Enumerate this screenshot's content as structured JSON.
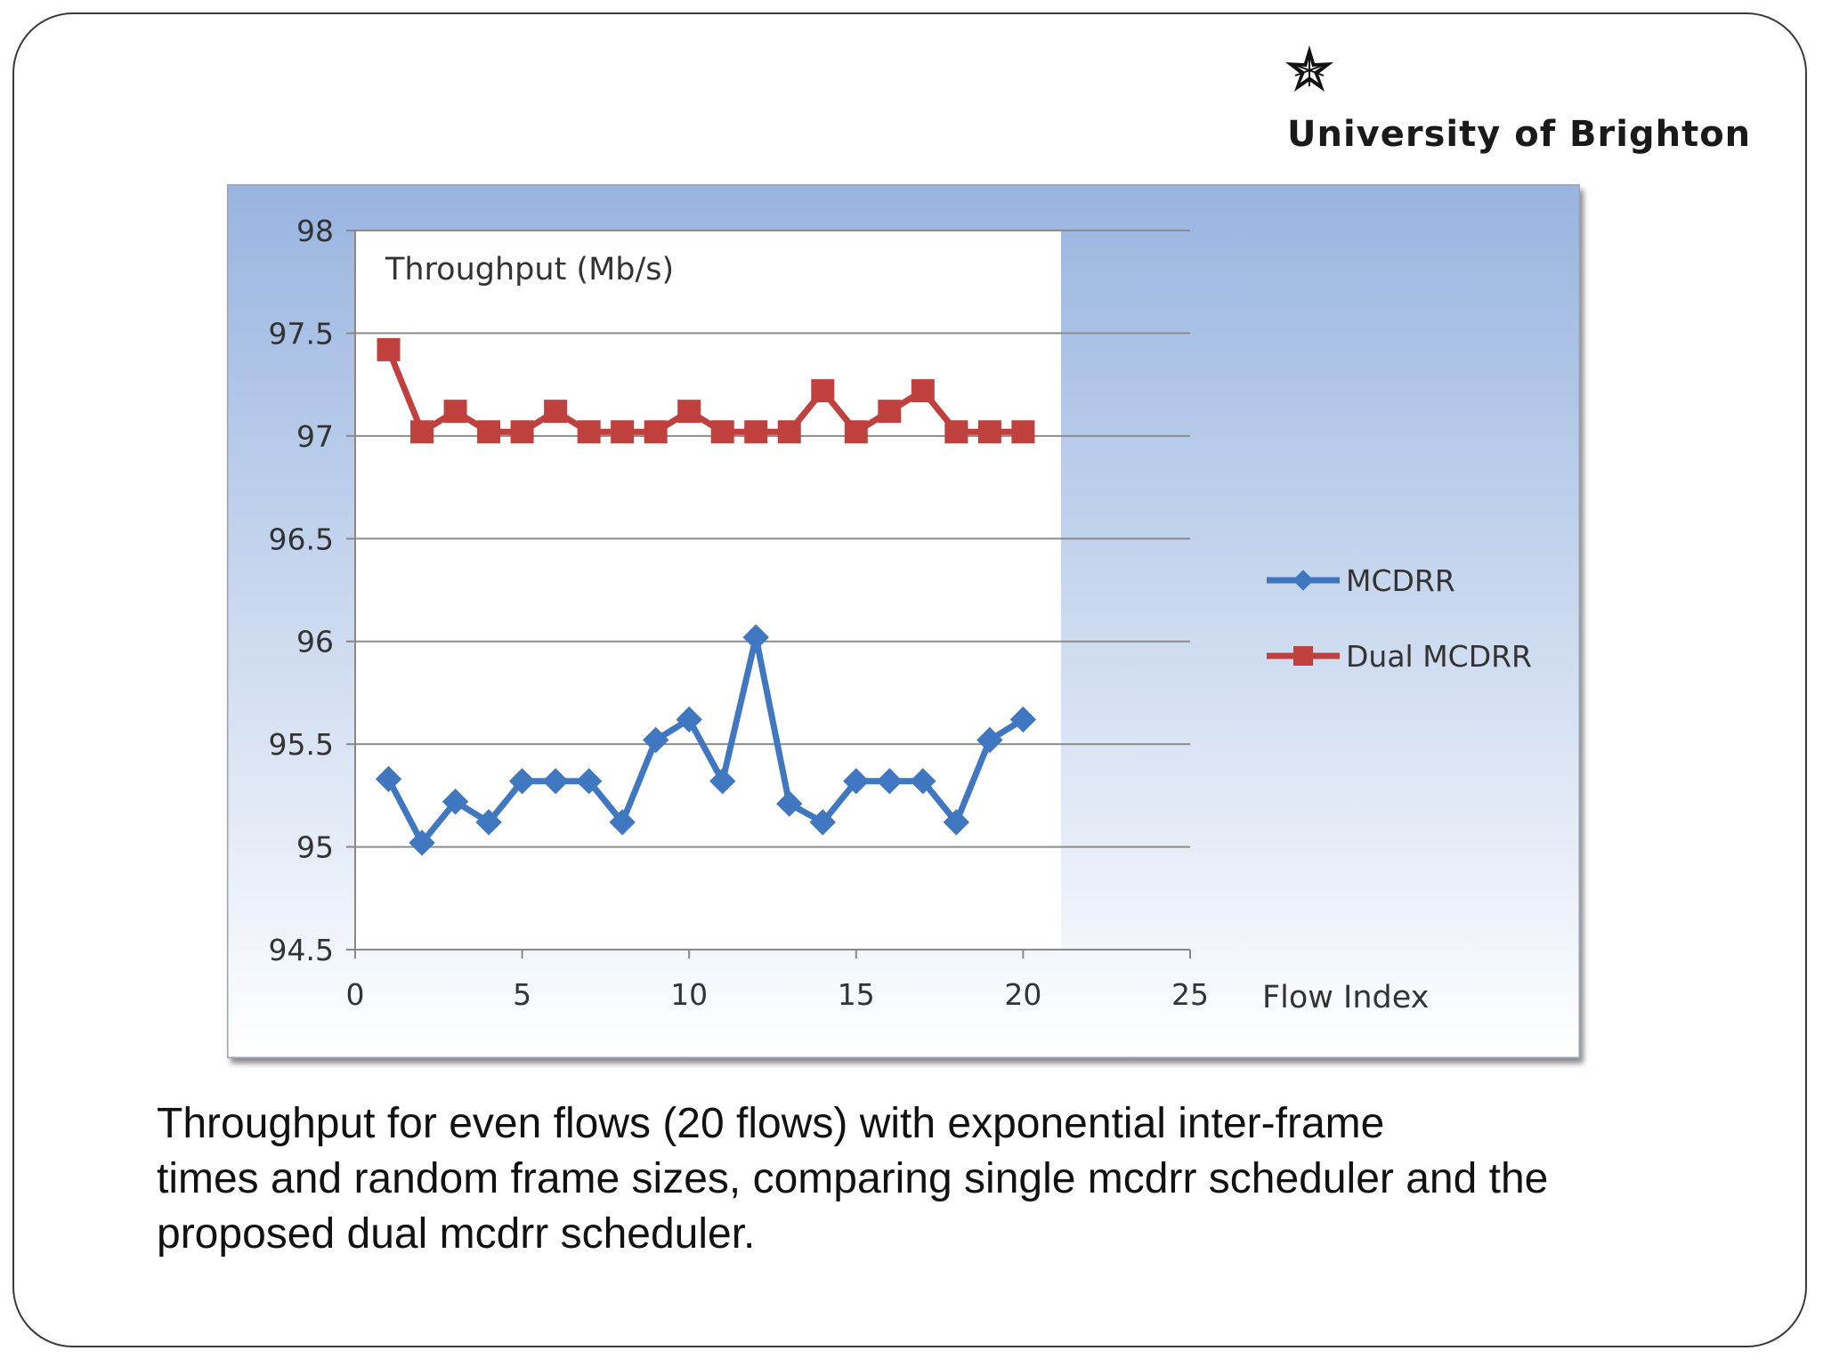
{
  "header": {
    "logo_text": "University of Brighton",
    "logo_icon": "star-emblem-icon"
  },
  "caption": {
    "lines": [
      "Throughput for even flows (20 flows) with exponential inter-frame",
      "times and random frame sizes, comparing single mcdrr scheduler and the",
      "proposed dual mcdrr scheduler."
    ]
  },
  "colors": {
    "background_top": "#98b4e0",
    "background_bottom": "#ffffff",
    "mcdrr": "#3f77c0",
    "dual_mcdrr": "#c0403d",
    "plot_area": "#ffffff",
    "gridline": "#8c8c8c"
  },
  "chart_data": {
    "type": "line",
    "title": "Throughput (Mb/s)",
    "xlabel": "Flow Index",
    "ylabel": "",
    "xlim": [
      0,
      25
    ],
    "ylim": [
      94.5,
      98
    ],
    "x_ticks": [
      "0",
      "5",
      "10",
      "15",
      "20",
      "25"
    ],
    "y_ticks": [
      "94.5",
      "95",
      "95.5",
      "96",
      "96.5",
      "97",
      "97.5",
      "98"
    ],
    "grid": "horizontal",
    "legend_position": "right",
    "x": [
      1,
      2,
      3,
      4,
      5,
      6,
      7,
      8,
      9,
      10,
      11,
      12,
      13,
      14,
      15,
      16,
      17,
      18,
      19,
      20
    ],
    "series": [
      {
        "name": "MCDRR",
        "marker": "diamond",
        "color": "#3f77c0",
        "values": [
          95.33,
          95.02,
          95.22,
          95.12,
          95.32,
          95.32,
          95.32,
          95.12,
          95.52,
          95.62,
          95.32,
          96.02,
          95.21,
          95.12,
          95.32,
          95.32,
          95.32,
          95.12,
          95.52,
          95.62
        ]
      },
      {
        "name": "Dual MCDRR",
        "marker": "square",
        "color": "#c0403d",
        "values": [
          97.42,
          97.02,
          97.12,
          97.02,
          97.02,
          97.12,
          97.02,
          97.02,
          97.02,
          97.12,
          97.02,
          97.02,
          97.02,
          97.22,
          97.02,
          97.12,
          97.22,
          97.02,
          97.02,
          97.02
        ]
      }
    ]
  }
}
